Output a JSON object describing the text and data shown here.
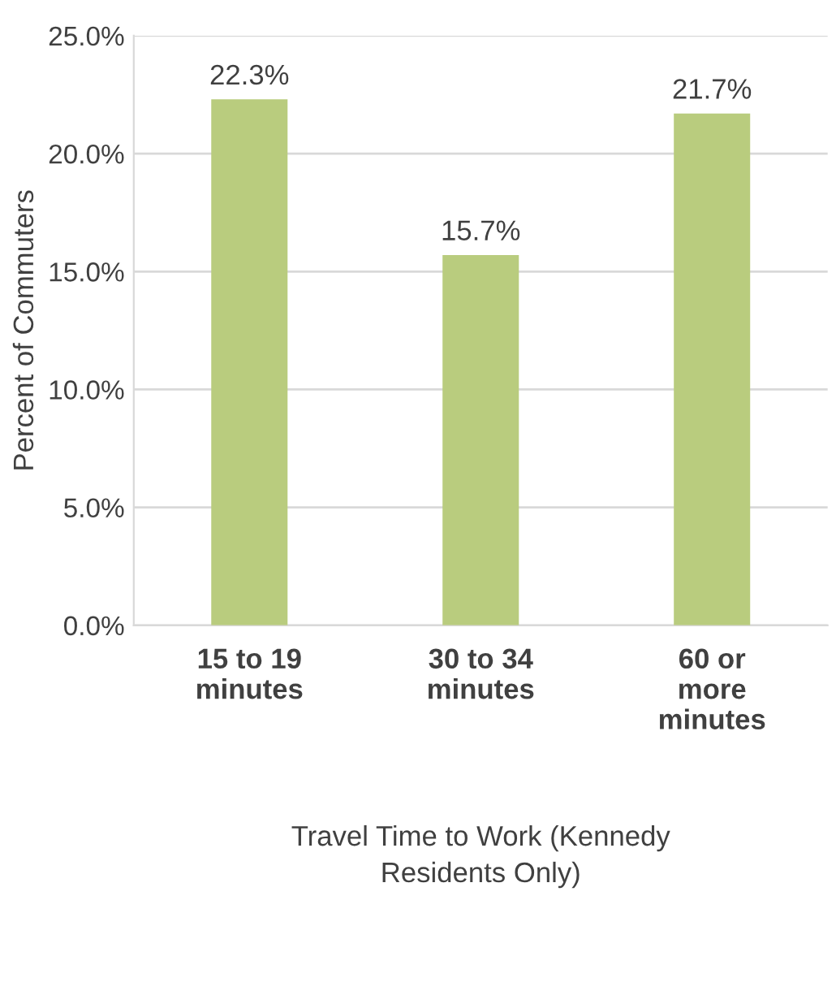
{
  "chart_data": {
    "type": "bar",
    "categories": [
      "15 to 19\nminutes",
      "30 to 34\nminutes",
      "60 or\nmore\nminutes"
    ],
    "values": [
      22.3,
      15.7,
      21.7
    ],
    "value_labels": [
      "22.3%",
      "15.7%",
      "21.7%"
    ],
    "color": "#b9cc7e",
    "ylabel": "Percent of Commuters",
    "xlabel": "Travel Time to Work (Kennedy\nResidents Only)",
    "ylim": [
      0,
      25
    ],
    "yticks": [
      {
        "value": 0,
        "label": "0.0%"
      },
      {
        "value": 5,
        "label": "5.0%"
      },
      {
        "value": 10,
        "label": "10.0%"
      },
      {
        "value": 15,
        "label": "15.0%"
      },
      {
        "value": 20,
        "label": "20.0%"
      },
      {
        "value": 25,
        "label": "25.0%"
      }
    ],
    "grid": "y"
  }
}
